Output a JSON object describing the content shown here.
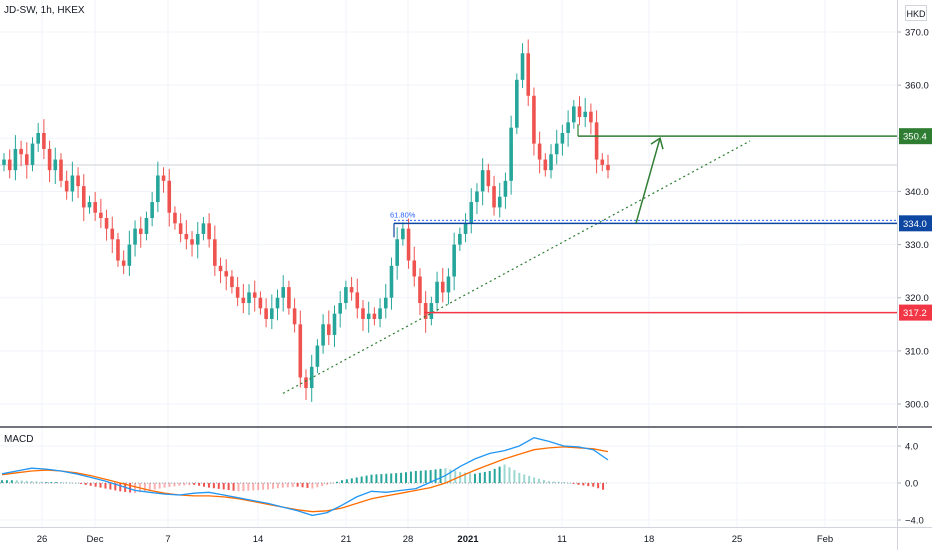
{
  "header": {
    "symbol": "JD-SW, 1h, HKEX",
    "currency": "HKD"
  },
  "macd_panel": {
    "title": "MACD"
  },
  "colors": {
    "up": "#26a69a",
    "down": "#ef5350",
    "support": "#f23645",
    "mid": "#0d47a1",
    "target": "#2e7d32",
    "macd_line": "#2196f3",
    "signal_line": "#ff6d00",
    "hist_up": "#26a69a",
    "hist_down": "#ef5350"
  },
  "chart_data": [
    {
      "type": "candlestick",
      "title": "",
      "x_ticks": [
        "26",
        "Dec",
        "7",
        "14",
        "21",
        "28",
        "2021",
        "11",
        "18",
        "25",
        "Feb"
      ],
      "y_ticks": [
        300,
        310,
        320,
        330,
        340,
        350,
        360,
        370
      ],
      "y_tick_labels": [
        "300.0",
        "310.0",
        "320.0",
        "330.0",
        "340.0",
        "350.0",
        "360.0",
        "370.0"
      ],
      "ylim": [
        298,
        373
      ],
      "close_series": [
        346,
        344,
        348,
        347,
        345,
        349,
        351,
        348,
        344,
        346,
        342,
        340,
        343,
        341,
        337,
        338,
        336,
        335,
        333,
        331,
        327,
        326,
        330,
        333,
        332,
        335,
        338,
        343,
        342,
        336,
        334,
        332,
        331,
        330,
        332,
        334,
        331,
        326,
        325,
        324,
        322,
        320,
        319,
        321,
        320,
        318,
        316,
        318,
        320,
        322,
        318,
        315,
        305,
        303,
        307,
        311,
        315,
        313,
        317,
        319,
        322,
        321,
        318,
        316,
        317,
        316,
        318,
        320,
        326,
        331,
        333,
        327,
        324,
        319,
        316,
        319,
        323,
        321,
        324,
        330,
        332,
        334,
        338,
        340,
        344,
        341,
        337,
        339,
        342,
        352,
        361,
        366,
        358,
        349,
        346,
        344,
        347,
        349,
        351,
        353,
        356,
        354,
        355,
        353,
        346,
        345,
        344
      ],
      "price_labels": [
        {
          "value": "350.4",
          "role": "target"
        },
        {
          "value": "334.0",
          "role": "mid"
        },
        {
          "value": "317.2",
          "role": "support"
        }
      ],
      "fib_label": "61.80%",
      "levels": {
        "target": 350.4,
        "mid": 334.0,
        "support": 317.2
      }
    },
    {
      "type": "line",
      "title": "MACD",
      "y_ticks": [
        4.0,
        0.0,
        -4.0
      ],
      "y_tick_labels": [
        "4.0",
        "0.0",
        "−4.0"
      ],
      "ylim": [
        -4.5,
        5.5
      ],
      "series": [
        {
          "role": "macd",
          "values": [
            1.0,
            1.3,
            1.6,
            1.5,
            1.3,
            1.0,
            0.6,
            0.2,
            -0.3,
            -0.8,
            -1.0,
            -1.2,
            -1.3,
            -1.1,
            -1.0,
            -1.3,
            -1.6,
            -1.9,
            -2.2,
            -2.6,
            -3.0,
            -3.5,
            -3.2,
            -2.4,
            -1.5,
            -0.9,
            -1.0,
            -0.8,
            -0.6,
            0.1,
            0.8,
            1.8,
            2.6,
            3.2,
            3.5,
            4.0,
            4.9,
            4.5,
            4.0,
            3.9,
            3.6,
            2.5
          ]
        },
        {
          "role": "signal",
          "values": [
            0.9,
            1.1,
            1.3,
            1.4,
            1.3,
            1.1,
            0.8,
            0.4,
            0.0,
            -0.4,
            -0.8,
            -1.1,
            -1.3,
            -1.4,
            -1.4,
            -1.5,
            -1.7,
            -2.0,
            -2.3,
            -2.6,
            -2.9,
            -3.1,
            -3.0,
            -2.7,
            -2.2,
            -1.7,
            -1.4,
            -1.1,
            -0.8,
            -0.5,
            0.0,
            0.7,
            1.4,
            2.0,
            2.6,
            3.1,
            3.6,
            3.8,
            3.9,
            3.8,
            3.7,
            3.4
          ]
        },
        {
          "role": "histogram",
          "values": [
            0.3,
            0.3,
            0.2,
            0.1,
            0.1,
            0.0,
            -0.3,
            -0.6,
            -0.9,
            -1.1,
            -0.8,
            -0.5,
            -0.3,
            -0.2,
            -0.5,
            -0.7,
            -0.9,
            -0.8,
            -0.7,
            -0.5,
            -0.4,
            -0.6,
            -0.2,
            0.3,
            0.6,
            0.9,
            1.0,
            1.1,
            1.3,
            1.4,
            1.6,
            1.2,
            1.0,
            1.3,
            2.0,
            1.1,
            0.6,
            0.2,
            0.1,
            -0.2,
            -0.4,
            -0.9
          ]
        }
      ]
    }
  ]
}
